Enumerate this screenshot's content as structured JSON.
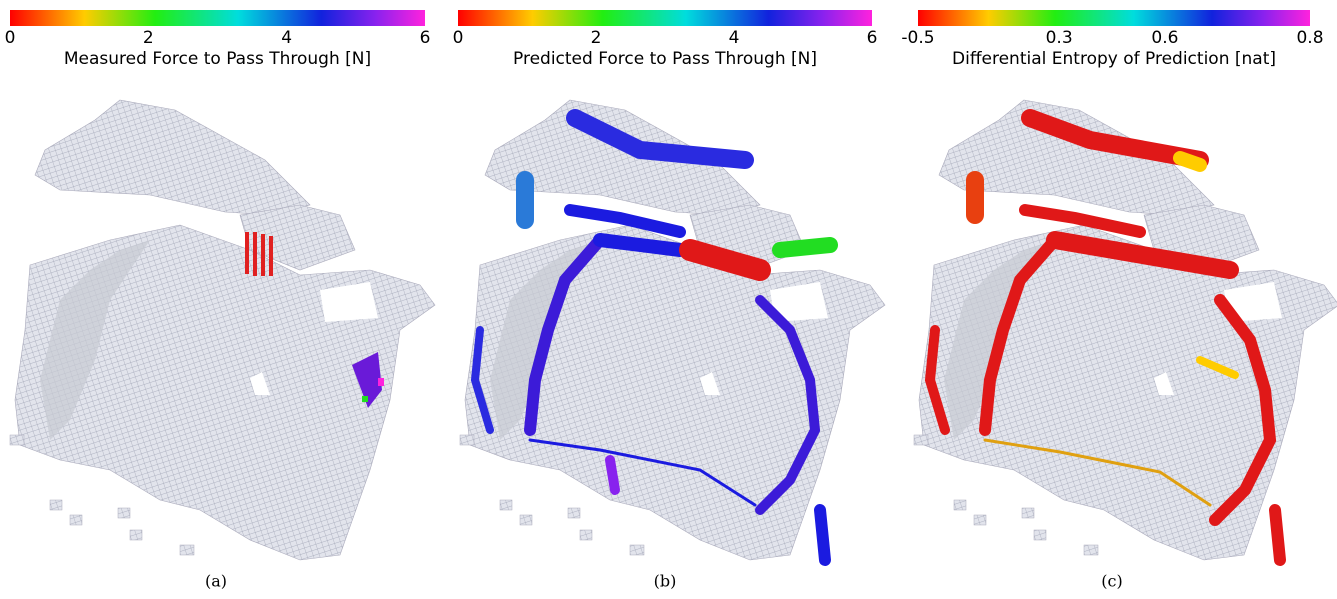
{
  "panels": [
    {
      "colorbar": {
        "ticks": [
          "0",
          "2",
          "4",
          "6"
        ],
        "label": "Measured Force to Pass Through [N]"
      },
      "caption": "(a)"
    },
    {
      "colorbar": {
        "ticks": [
          "0",
          "2",
          "4",
          "6"
        ],
        "label": "Predicted Force to Pass Through [N]"
      },
      "caption": "(b)"
    },
    {
      "colorbar": {
        "ticks": [
          "-0.5",
          "0.3",
          "0.6",
          "0.8"
        ],
        "label": "Differential Entropy of Prediction [nat]"
      },
      "caption": "(c)"
    }
  ]
}
